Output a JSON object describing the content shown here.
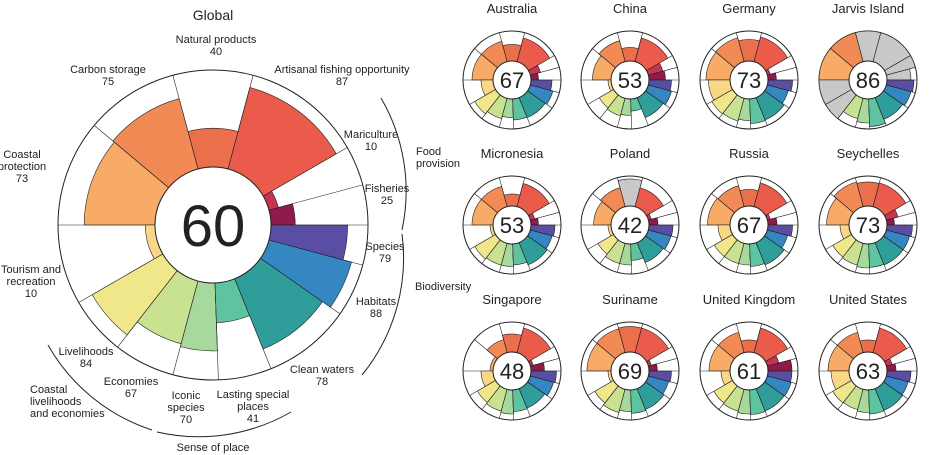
{
  "palette": {
    "food_provision": [
      "#8e1b4b",
      "#c8344f"
    ],
    "natural_products": "#ec6f4c",
    "artisanal": "#ea5b4b",
    "carbon_storage": "#f28a55",
    "coastal_protection": "#f7ab67",
    "tourism": "#f9d787",
    "livelihoods": "#f0e68a",
    "economies": "#c9e292",
    "iconic": "#a6d99b",
    "lasting": "#5ec3a1",
    "clean_waters": "#2f9e9a",
    "habitats": "#3487c1",
    "species": "#5a4ea4",
    "missing": "#c8c8c8",
    "outline": "#222222"
  },
  "chart_data": [
    {
      "type": "radial-bar",
      "title": "Global",
      "overall": "60",
      "goals": [
        {
          "key": "fisheries",
          "label": "Fisheries",
          "value": 25
        },
        {
          "key": "mariculture",
          "label": "Mariculture",
          "value": 10
        },
        {
          "key": "artisanal",
          "label": "Artisanal fishing opportunity",
          "value": 87
        },
        {
          "key": "natural_products",
          "label": "Natural products",
          "value": 40
        },
        {
          "key": "carbon_storage",
          "label": "Carbon storage",
          "value": 75
        },
        {
          "key": "coastal_protection",
          "label": "Coastal protection",
          "value": 73
        },
        {
          "key": "tourism",
          "label": "Tourism and recreation",
          "value": 10
        },
        {
          "key": "livelihoods",
          "label": "Livelihoods",
          "value": 84
        },
        {
          "key": "economies",
          "label": "Economies",
          "value": 67
        },
        {
          "key": "iconic",
          "label": "Iconic species",
          "value": 70
        },
        {
          "key": "lasting",
          "label": "Lasting special places",
          "value": 41
        },
        {
          "key": "clean_waters",
          "label": "Clean waters",
          "value": 78
        },
        {
          "key": "habitats",
          "label": "Habitats",
          "value": 88
        },
        {
          "key": "species",
          "label": "Species",
          "value": 79
        }
      ],
      "groups": [
        "Food provision",
        "Biodiversity",
        "Sense of place",
        "Coastal livelihoods and economies"
      ]
    },
    {
      "title": "Australia",
      "overall": "67",
      "values": [
        25,
        35,
        82,
        55,
        70,
        70,
        40,
        80,
        70,
        62,
        70,
        72,
        78,
        70
      ]
    },
    {
      "title": "China",
      "overall": "53",
      "values": [
        55,
        50,
        82,
        45,
        72,
        62,
        10,
        55,
        60,
        55,
        40,
        72,
        80,
        75
      ]
    },
    {
      "title": "Germany",
      "overall": "73",
      "values": [
        28,
        10,
        85,
        72,
        82,
        80,
        72,
        80,
        78,
        72,
        82,
        80,
        72,
        82
      ]
    },
    {
      "title": "Jarvis Island",
      "overall": "86",
      "values": [
        80,
        100,
        100,
        100,
        100,
        100,
        100,
        100,
        70,
        80,
        92,
        78,
        85,
        90
      ],
      "missing": [
        true,
        true,
        true,
        true,
        false,
        false,
        true,
        true,
        false,
        false,
        false,
        false,
        false,
        false
      ]
    },
    {
      "title": "Micronesia",
      "overall": "53",
      "values": [
        25,
        15,
        80,
        40,
        70,
        70,
        10,
        80,
        75,
        75,
        70,
        80,
        75,
        80
      ]
    },
    {
      "title": "Poland",
      "overall": "42",
      "values": [
        30,
        10,
        65,
        90,
        65,
        58,
        10,
        60,
        70,
        70,
        55,
        72,
        78,
        80
      ],
      "missing": [
        false,
        false,
        false,
        true,
        false,
        false,
        false,
        false,
        false,
        false,
        false,
        false,
        false,
        false
      ]
    },
    {
      "title": "Russia",
      "overall": "67",
      "values": [
        30,
        10,
        82,
        55,
        72,
        75,
        40,
        70,
        70,
        70,
        75,
        80,
        70,
        82
      ]
    },
    {
      "title": "Seychelles",
      "overall": "73",
      "values": [
        25,
        40,
        82,
        80,
        85,
        75,
        30,
        72,
        75,
        80,
        78,
        80,
        80,
        85
      ]
    },
    {
      "title": "Singapore",
      "overall": "48",
      "values": [
        45,
        10,
        85,
        60,
        45,
        10,
        40,
        70,
        75,
        80,
        72,
        70,
        80,
        85
      ]
    },
    {
      "title": "Suriname",
      "overall": "69",
      "values": [
        28,
        10,
        85,
        85,
        82,
        80,
        10,
        72,
        80,
        72,
        78,
        75,
        70,
        75
      ]
    },
    {
      "title": "United Kingdom",
      "overall": "61",
      "values": [
        80,
        40,
        85,
        40,
        70,
        70,
        30,
        72,
        75,
        80,
        82,
        80,
        82,
        80
      ]
    },
    {
      "title": "United States",
      "overall": "63",
      "values": [
        30,
        20,
        85,
        40,
        70,
        70,
        60,
        72,
        70,
        75,
        80,
        78,
        75,
        80
      ]
    }
  ],
  "labels": {
    "natural_products": {
      "name": "Natural products",
      "val": "40"
    },
    "carbon_storage": {
      "name": "Carbon storage",
      "val": "75"
    },
    "artisanal": {
      "name": "Artisanal fishing opportunity",
      "val": "87"
    },
    "mariculture": {
      "name": "Mariculture",
      "val": "10"
    },
    "fisheries": {
      "name": "Fisheries",
      "val": "25"
    },
    "coastal_protection": {
      "l1": "Coastal",
      "l2": "protection",
      "val": "73"
    },
    "tourism": {
      "l1": "Tourism and",
      "l2": "recreation",
      "val": "10"
    },
    "species": {
      "name": "Species",
      "val": "79"
    },
    "habitats": {
      "name": "Habitats",
      "val": "88"
    },
    "livelihoods": {
      "name": "Livelihoods",
      "val": "84"
    },
    "economies": {
      "name": "Economies",
      "val": "67"
    },
    "iconic": {
      "l1": "Iconic",
      "l2": "species",
      "val": "70"
    },
    "lasting": {
      "l1": "Lasting special",
      "l2": "places",
      "val": "41"
    },
    "clean_waters": {
      "name": "Clean waters",
      "val": "78"
    },
    "food_provision": {
      "l1": "Food",
      "l2": "provision"
    },
    "biodiversity": "Biodiversity",
    "sense_of_place": "Sense of place",
    "coastal_liv": {
      "l1": "Coastal",
      "l2": "livelihoods",
      "l3": "and economies"
    }
  }
}
